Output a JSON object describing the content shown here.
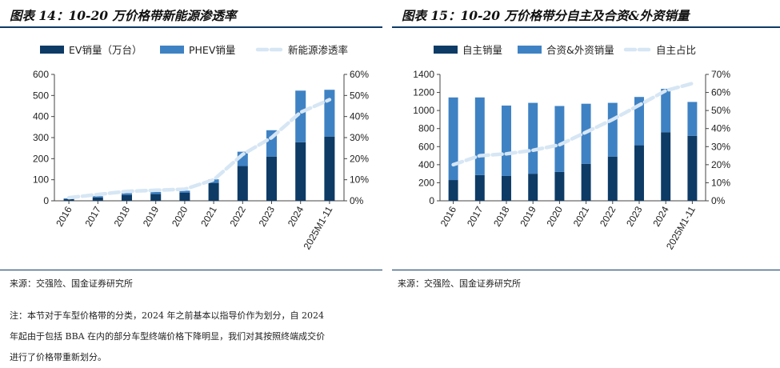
{
  "left": {
    "title": "图表 14：10-20 万价格带新能源渗透率",
    "source": "来源：交强险、国金证券研究所",
    "legend": {
      "ev": "EV销量（万台）",
      "phev": "PHEV销量",
      "rate": "新能源渗透率"
    }
  },
  "right": {
    "title": "图表 15：10-20 万价格带分自主及合资&外资销量",
    "source": "来源：交强险、国金证券研究所",
    "legend": {
      "domestic": "自主销量",
      "jv": "合资&外资销量",
      "share": "自主占比"
    }
  },
  "note": {
    "line1": "注：本节对于车型价格带的分类，2024 年之前基本以指导价作为划分，自 2024",
    "line2": "年起由于包括 BBA 在内的部分车型终端价格下降明显，我们对其按照终端成交价",
    "line3": "进行了价格带重新划分。"
  },
  "colors": {
    "dark": "#0d3b66",
    "mid": "#3f82c4",
    "light": "#d6e6f4",
    "rule": "#0d3b66"
  },
  "chart_data": [
    {
      "type": "bar",
      "stacked": true,
      "categories": [
        "2016",
        "2017",
        "2018",
        "2019",
        "2020",
        "2021",
        "2022",
        "2023",
        "2024",
        "2025M1-11"
      ],
      "series": [
        {
          "name": "EV销量（万台）",
          "axis": "left",
          "values": [
            8,
            16,
            28,
            32,
            38,
            85,
            165,
            210,
            278,
            305
          ]
        },
        {
          "name": "PHEV销量",
          "axis": "left",
          "values": [
            4,
            6,
            8,
            10,
            10,
            17,
            68,
            125,
            245,
            222
          ]
        },
        {
          "name": "新能源渗透率",
          "axis": "right",
          "kind": "line",
          "values": [
            1.5,
            3,
            4.5,
            5,
            5.5,
            10,
            22,
            30,
            42,
            48
          ]
        }
      ],
      "ylim": [
        0,
        600
      ],
      "yticks": [
        "0",
        "100",
        "200",
        "300",
        "400",
        "500",
        "600"
      ],
      "y2lim": [
        0,
        60
      ],
      "y2ticks": [
        "0%",
        "10%",
        "20%",
        "30%",
        "40%",
        "50%",
        "60%"
      ],
      "legend": "top"
    },
    {
      "type": "bar",
      "stacked": true,
      "categories": [
        "2016",
        "2017",
        "2018",
        "2019",
        "2020",
        "2021",
        "2022",
        "2023",
        "2024",
        "2025M1-11"
      ],
      "series": [
        {
          "name": "自主销量",
          "axis": "left",
          "values": [
            230,
            285,
            275,
            300,
            320,
            410,
            490,
            615,
            760,
            720
          ]
        },
        {
          "name": "合资&外资销量",
          "axis": "left",
          "values": [
            915,
            860,
            780,
            785,
            730,
            665,
            595,
            535,
            480,
            375
          ]
        },
        {
          "name": "自主占比",
          "axis": "right",
          "kind": "line",
          "values": [
            20,
            25,
            26,
            28,
            31,
            38,
            45,
            53,
            61,
            65
          ]
        }
      ],
      "ylim": [
        0,
        1400
      ],
      "yticks": [
        "0",
        "200",
        "400",
        "600",
        "800",
        "1000",
        "1200",
        "1400"
      ],
      "y2lim": [
        0,
        70
      ],
      "y2ticks": [
        "0%",
        "10%",
        "20%",
        "30%",
        "40%",
        "50%",
        "60%",
        "70%"
      ],
      "legend": "top"
    }
  ]
}
